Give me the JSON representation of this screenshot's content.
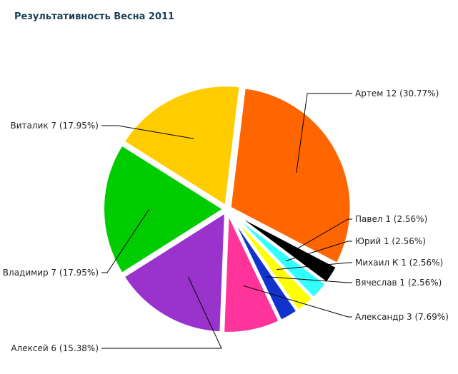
{
  "chart_data": {
    "type": "pie",
    "title": "Результативность Весна 2011",
    "slices": [
      {
        "name": "Артем",
        "value": 12,
        "percent": "30.77%",
        "color": "#FF6600",
        "label": "Артем 12 (30.77%)"
      },
      {
        "name": "Павел",
        "value": 1,
        "percent": "2.56%",
        "color": "#000000",
        "label": "Павел 1 (2.56%)"
      },
      {
        "name": "Юрий",
        "value": 1,
        "percent": "2.56%",
        "color": "#33FFFF",
        "label": "Юрий 1 (2.56%)"
      },
      {
        "name": "Михаил К",
        "value": 1,
        "percent": "2.56%",
        "color": "#FFFF00",
        "label": "Михаил К 1 (2.56%)"
      },
      {
        "name": "Вячеслав",
        "value": 1,
        "percent": "2.56%",
        "color": "#1133CC",
        "label": "Вячеслав 1 (2.56%)"
      },
      {
        "name": "Александр",
        "value": 3,
        "percent": "7.69%",
        "color": "#FF3399",
        "label": "Александр 3 (7.69%)"
      },
      {
        "name": "Алексей",
        "value": 6,
        "percent": "15.38%",
        "color": "#9933CC",
        "label": "Алексей 6 (15.38%)"
      },
      {
        "name": "Владимир",
        "value": 7,
        "percent": "17.95%",
        "color": "#00CC00",
        "label": "Владимир 7 (17.95%)"
      },
      {
        "name": "Виталик",
        "value": 7,
        "percent": "17.95%",
        "color": "#FFCC00",
        "label": "Виталик 7 (17.95%)"
      }
    ]
  }
}
